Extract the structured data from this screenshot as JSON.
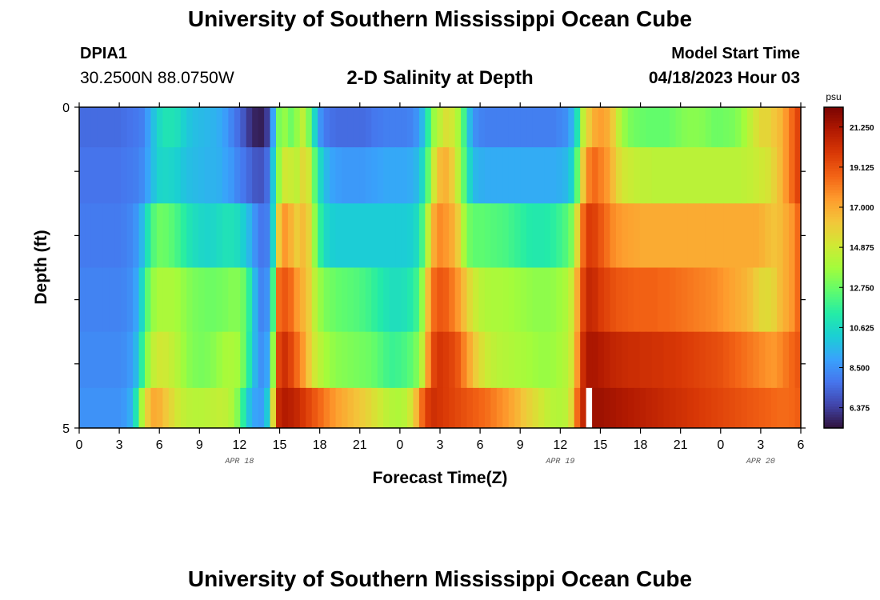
{
  "header": {
    "title": "University of Southern Mississippi Ocean Cube",
    "station": "DPIA1",
    "coords": "30.2500N  88.0750W",
    "subtitle": "2-D Salinity at Depth",
    "model_start_label": "Model Start Time",
    "model_start_value": "04/18/2023 Hour 03"
  },
  "footer": {
    "title": "University of Southern Mississippi Ocean Cube"
  },
  "chart_data": {
    "type": "heatmap",
    "xlabel": "Forecast Time(Z)",
    "ylabel": "Depth (ft)",
    "x_tick_labels": [
      "0",
      "3",
      "6",
      "9",
      "12",
      "15",
      "18",
      "21",
      "0",
      "3",
      "6",
      "9",
      "12",
      "15",
      "18",
      "21",
      "0",
      "3",
      "6"
    ],
    "x_range_hours": [
      0,
      54
    ],
    "date_labels": [
      {
        "label": "APR 18",
        "hour": 12
      },
      {
        "label": "APR 19",
        "hour": 36
      },
      {
        "label": "APR 20",
        "hour": 51
      }
    ],
    "y_tick_labels": [
      {
        "label": "0",
        "depth": 0
      },
      {
        "label": "5",
        "depth": 5
      }
    ],
    "y_range": [
      0,
      5
    ],
    "depth_levels": [
      0.25,
      1.0,
      2.0,
      3.0,
      4.0,
      4.75
    ],
    "colorbar": {
      "unit": "psu",
      "min": 5.3,
      "max": 22.3,
      "tick_labels": [
        "21.250",
        "19.125",
        "17.000",
        "14.875",
        "12.750",
        "10.625",
        "8.500",
        "6.375"
      ],
      "tick_values": [
        21.25,
        19.125,
        17.0,
        14.875,
        12.75,
        10.625,
        8.5,
        6.375
      ],
      "colors": [
        "#30123b",
        "#4145ab",
        "#4675ed",
        "#39a2fc",
        "#1bcfd4",
        "#24eca6",
        "#61fc6c",
        "#a4fc3b",
        "#d1e834",
        "#f3c63a",
        "#fe9b2d",
        "#f36315",
        "#d93806",
        "#b11901",
        "#7a0402"
      ]
    },
    "series": [
      {
        "depth": 0.25,
        "values": [
          7.5,
          7.5,
          7.5,
          7.5,
          7.5,
          7.5,
          7.5,
          7.6,
          7.7,
          7.8,
          8.0,
          8.8,
          9.8,
          10.6,
          11.0,
          11.0,
          10.8,
          10.3,
          9.9,
          9.7,
          9.6,
          9.5,
          9.4,
          9.2,
          8.8,
          8.2,
          7.6,
          7.0,
          6.2,
          5.7,
          5.6,
          6.3,
          9.0,
          13.0,
          13.5,
          12.8,
          13.5,
          14.5,
          13.0,
          10.5,
          8.5,
          7.8,
          7.6,
          7.5,
          7.5,
          7.5,
          7.5,
          7.5,
          7.6,
          7.8,
          7.9,
          8.0,
          8.0,
          8.0,
          8.0,
          8.1,
          8.5,
          9.5,
          11.5,
          13.6,
          14.5,
          15.3,
          15.0,
          14.0,
          12.0,
          9.6,
          8.4,
          8.1,
          8.0,
          8.0,
          8.0,
          8.0,
          8.0,
          8.0,
          8.0,
          8.0,
          8.0,
          8.0,
          8.0,
          8.0,
          8.2,
          8.4,
          9.2,
          11.0,
          14.5,
          16.0,
          17.0,
          17.3,
          17.0,
          16.0,
          14.5,
          13.5,
          13.0,
          12.8,
          12.7,
          12.6,
          12.6,
          12.6,
          12.6,
          12.8,
          13.0,
          13.2,
          13.3,
          13.3,
          13.2,
          13.0,
          12.8,
          12.8,
          12.9,
          13.0,
          13.3,
          13.8,
          14.5,
          15.2,
          15.7,
          15.7,
          16.2,
          16.6,
          17.5,
          18.5,
          19.5
        ]
      },
      {
        "depth": 1.0,
        "values": [
          7.7,
          7.7,
          7.7,
          7.7,
          7.7,
          7.7,
          7.7,
          7.8,
          7.9,
          8.0,
          8.3,
          9.0,
          9.8,
          10.4,
          10.5,
          10.4,
          10.2,
          9.9,
          9.7,
          9.6,
          9.5,
          9.4,
          9.4,
          9.3,
          9.0,
          8.7,
          8.2,
          7.8,
          7.4,
          7.0,
          6.9,
          7.5,
          10.0,
          13.5,
          15.0,
          14.8,
          14.5,
          15.5,
          15.0,
          12.5,
          10.5,
          9.5,
          9.0,
          8.8,
          8.7,
          8.7,
          8.7,
          8.7,
          8.8,
          8.9,
          9.0,
          9.1,
          9.1,
          9.1,
          9.1,
          9.2,
          9.5,
          10.5,
          12.5,
          15.0,
          16.5,
          16.8,
          16.0,
          14.5,
          12.5,
          10.5,
          9.5,
          9.3,
          9.2,
          9.2,
          9.2,
          9.2,
          9.2,
          9.2,
          9.2,
          9.2,
          9.2,
          9.2,
          9.2,
          9.2,
          9.3,
          9.5,
          10.2,
          12.5,
          16.0,
          18.0,
          18.5,
          18.0,
          17.5,
          16.5,
          15.5,
          15.0,
          14.8,
          14.6,
          14.5,
          14.5,
          14.4,
          14.4,
          14.4,
          14.4,
          14.4,
          14.4,
          14.4,
          14.4,
          14.4,
          14.4,
          14.4,
          14.4,
          14.4,
          14.4,
          14.4,
          14.5,
          14.6,
          14.8,
          15.0,
          15.2,
          15.8,
          16.5,
          17.5,
          18.5,
          19.5
        ]
      },
      {
        "depth": 2.0,
        "values": [
          7.9,
          7.9,
          7.9,
          7.9,
          7.9,
          7.9,
          7.9,
          8.0,
          8.2,
          8.6,
          9.5,
          11.0,
          12.3,
          12.8,
          12.7,
          12.4,
          12.0,
          11.5,
          11.0,
          10.7,
          10.5,
          10.4,
          10.5,
          10.7,
          10.9,
          10.9,
          10.7,
          10.2,
          9.5,
          8.5,
          7.8,
          8.0,
          10.5,
          16.0,
          17.5,
          16.8,
          16.0,
          16.5,
          15.8,
          13.5,
          11.5,
          10.5,
          10.2,
          10.1,
          10.1,
          10.1,
          10.1,
          10.1,
          10.1,
          10.1,
          10.1,
          10.1,
          10.1,
          10.1,
          10.1,
          10.2,
          10.6,
          12.0,
          14.5,
          17.0,
          17.8,
          17.5,
          17.0,
          16.0,
          14.0,
          12.8,
          12.5,
          12.5,
          12.4,
          12.3,
          12.2,
          12.1,
          11.9,
          11.7,
          11.5,
          11.3,
          11.2,
          11.2,
          11.3,
          11.5,
          11.8,
          12.2,
          13.0,
          15.5,
          18.5,
          19.8,
          19.6,
          19.0,
          18.4,
          17.8,
          17.5,
          17.3,
          17.2,
          17.1,
          17.0,
          17.0,
          17.0,
          17.0,
          17.0,
          17.0,
          17.0,
          17.0,
          17.0,
          17.0,
          17.0,
          17.0,
          17.0,
          17.0,
          17.0,
          17.0,
          17.0,
          17.0,
          17.0,
          17.0,
          16.8,
          16.5,
          16.3,
          16.5,
          17.0,
          17.5,
          18.5
        ]
      },
      {
        "depth": 3.0,
        "values": [
          8.1,
          8.1,
          8.1,
          8.1,
          8.1,
          8.1,
          8.1,
          8.2,
          8.4,
          9.0,
          10.5,
          12.5,
          13.6,
          14.0,
          14.0,
          14.0,
          13.8,
          13.5,
          13.2,
          13.0,
          12.9,
          12.8,
          12.8,
          12.9,
          13.0,
          13.2,
          13.2,
          12.8,
          11.5,
          9.5,
          8.2,
          8.5,
          12.0,
          18.5,
          19.0,
          18.5,
          17.5,
          16.8,
          16.0,
          14.5,
          13.5,
          13.0,
          12.8,
          12.6,
          12.5,
          12.4,
          12.3,
          12.1,
          11.9,
          11.6,
          11.3,
          11.0,
          10.8,
          10.8,
          10.9,
          11.2,
          11.8,
          13.5,
          16.5,
          18.5,
          19.0,
          18.8,
          18.2,
          17.5,
          16.5,
          15.5,
          14.8,
          14.3,
          14.1,
          14.0,
          14.0,
          13.9,
          13.8,
          13.7,
          13.6,
          13.5,
          13.4,
          13.4,
          13.4,
          13.5,
          13.7,
          14.0,
          14.8,
          17.0,
          19.5,
          20.5,
          20.3,
          19.8,
          19.5,
          19.2,
          19.0,
          18.9,
          18.8,
          18.7,
          18.7,
          18.7,
          18.7,
          18.6,
          18.6,
          18.5,
          18.4,
          18.3,
          18.2,
          18.1,
          18.0,
          17.9,
          17.8,
          17.6,
          17.4,
          17.2,
          17.0,
          16.8,
          16.5,
          16.0,
          15.6,
          15.5,
          15.8,
          16.5,
          17.0,
          17.5,
          18.5
        ]
      },
      {
        "depth": 4.0,
        "values": [
          8.3,
          8.3,
          8.3,
          8.3,
          8.3,
          8.3,
          8.3,
          8.4,
          8.7,
          9.5,
          11.5,
          13.5,
          14.6,
          15.0,
          14.9,
          14.6,
          14.2,
          13.7,
          13.3,
          13.1,
          13.0,
          13.1,
          13.3,
          13.6,
          13.9,
          14.0,
          13.8,
          12.9,
          11.3,
          9.5,
          8.5,
          9.0,
          13.5,
          19.5,
          20.2,
          19.5,
          18.5,
          17.5,
          16.2,
          15.0,
          14.3,
          13.8,
          13.5,
          13.3,
          13.2,
          13.1,
          13.0,
          12.9,
          12.8,
          12.6,
          12.3,
          12.0,
          11.8,
          11.9,
          12.1,
          12.4,
          13.0,
          14.5,
          17.5,
          19.5,
          20.0,
          19.8,
          19.5,
          19.0,
          18.0,
          17.0,
          16.0,
          15.3,
          14.8,
          14.5,
          14.3,
          14.2,
          14.1,
          14.0,
          13.9,
          13.8,
          13.7,
          13.6,
          13.6,
          13.7,
          13.9,
          14.2,
          15.0,
          17.5,
          20.3,
          21.2,
          21.2,
          21.0,
          20.8,
          20.6,
          20.5,
          20.4,
          20.3,
          20.3,
          20.2,
          20.2,
          20.1,
          20.1,
          20.0,
          20.0,
          19.9,
          19.8,
          19.7,
          19.6,
          19.5,
          19.4,
          19.3,
          19.2,
          19.0,
          18.8,
          18.6,
          18.4,
          18.2,
          18.0,
          17.8,
          17.6,
          17.5,
          17.8,
          18.2,
          18.6,
          19.0
        ]
      },
      {
        "depth": 4.75,
        "values": [
          8.5,
          8.5,
          8.5,
          8.5,
          8.5,
          8.5,
          8.5,
          8.7,
          9.2,
          11.0,
          14.0,
          16.0,
          17.0,
          16.8,
          16.2,
          15.6,
          15.0,
          14.6,
          14.4,
          14.3,
          14.3,
          14.4,
          14.5,
          14.6,
          14.5,
          14.1,
          13.2,
          11.5,
          9.8,
          9.0,
          8.8,
          10.0,
          15.5,
          20.5,
          21.0,
          20.8,
          20.5,
          20.0,
          19.5,
          19.0,
          18.5,
          18.0,
          17.6,
          17.2,
          16.9,
          16.6,
          16.3,
          16.0,
          15.7,
          15.3,
          14.9,
          14.5,
          14.2,
          14.1,
          14.3,
          15.0,
          16.5,
          18.5,
          19.8,
          20.2,
          20.0,
          19.8,
          19.6,
          19.4,
          19.2,
          19.0,
          18.8,
          18.6,
          18.4,
          18.1,
          17.8,
          17.5,
          17.1,
          16.7,
          16.2,
          15.8,
          15.4,
          15.0,
          14.6,
          14.3,
          14.2,
          14.4,
          15.5,
          18.5,
          20.5,
          null,
          21.5,
          21.5,
          21.4,
          21.3,
          21.2,
          21.1,
          21.0,
          20.9,
          20.8,
          20.7,
          20.6,
          20.5,
          20.4,
          20.3,
          20.2,
          20.1,
          20.0,
          19.9,
          19.8,
          19.7,
          19.6,
          19.5,
          19.4,
          19.3,
          19.2,
          19.1,
          19.0,
          18.9,
          18.8,
          18.7,
          18.6,
          18.5,
          18.5,
          18.6,
          18.8
        ]
      }
    ]
  }
}
